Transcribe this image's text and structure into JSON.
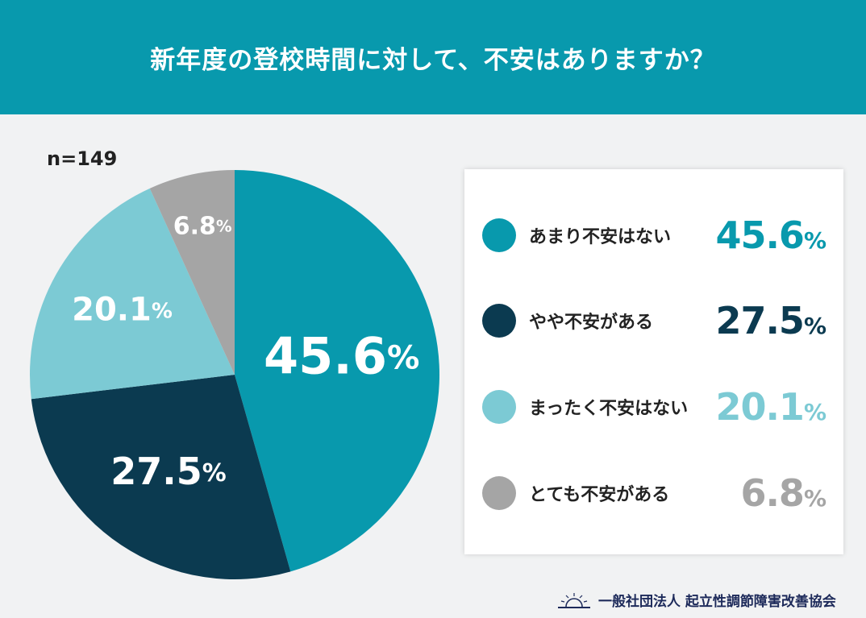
{
  "header": {
    "title": "新年度の登校時間に対して、不安はありますか？"
  },
  "chart_data": {
    "type": "pie",
    "title": "新年度の登校時間に対して、不安はありますか？",
    "n_label": "n=149",
    "categories": [
      "あまり不安はない",
      "やや不安がある",
      "まったく不安はない",
      "とても不安がある"
    ],
    "values": [
      45.6,
      27.5,
      20.1,
      6.8
    ],
    "colors": [
      "#0899ad",
      "#0b3a50",
      "#7ccad4",
      "#a5a5a5"
    ],
    "start": "top",
    "direction": "clockwise",
    "legend": "right",
    "value_labels": [
      "45.6",
      "27.5",
      "20.1",
      "6.8"
    ],
    "unit": "%"
  },
  "footer": {
    "org": "一般社団法人 起立性調節障害改善協会",
    "logo": "sunrise-logo"
  }
}
